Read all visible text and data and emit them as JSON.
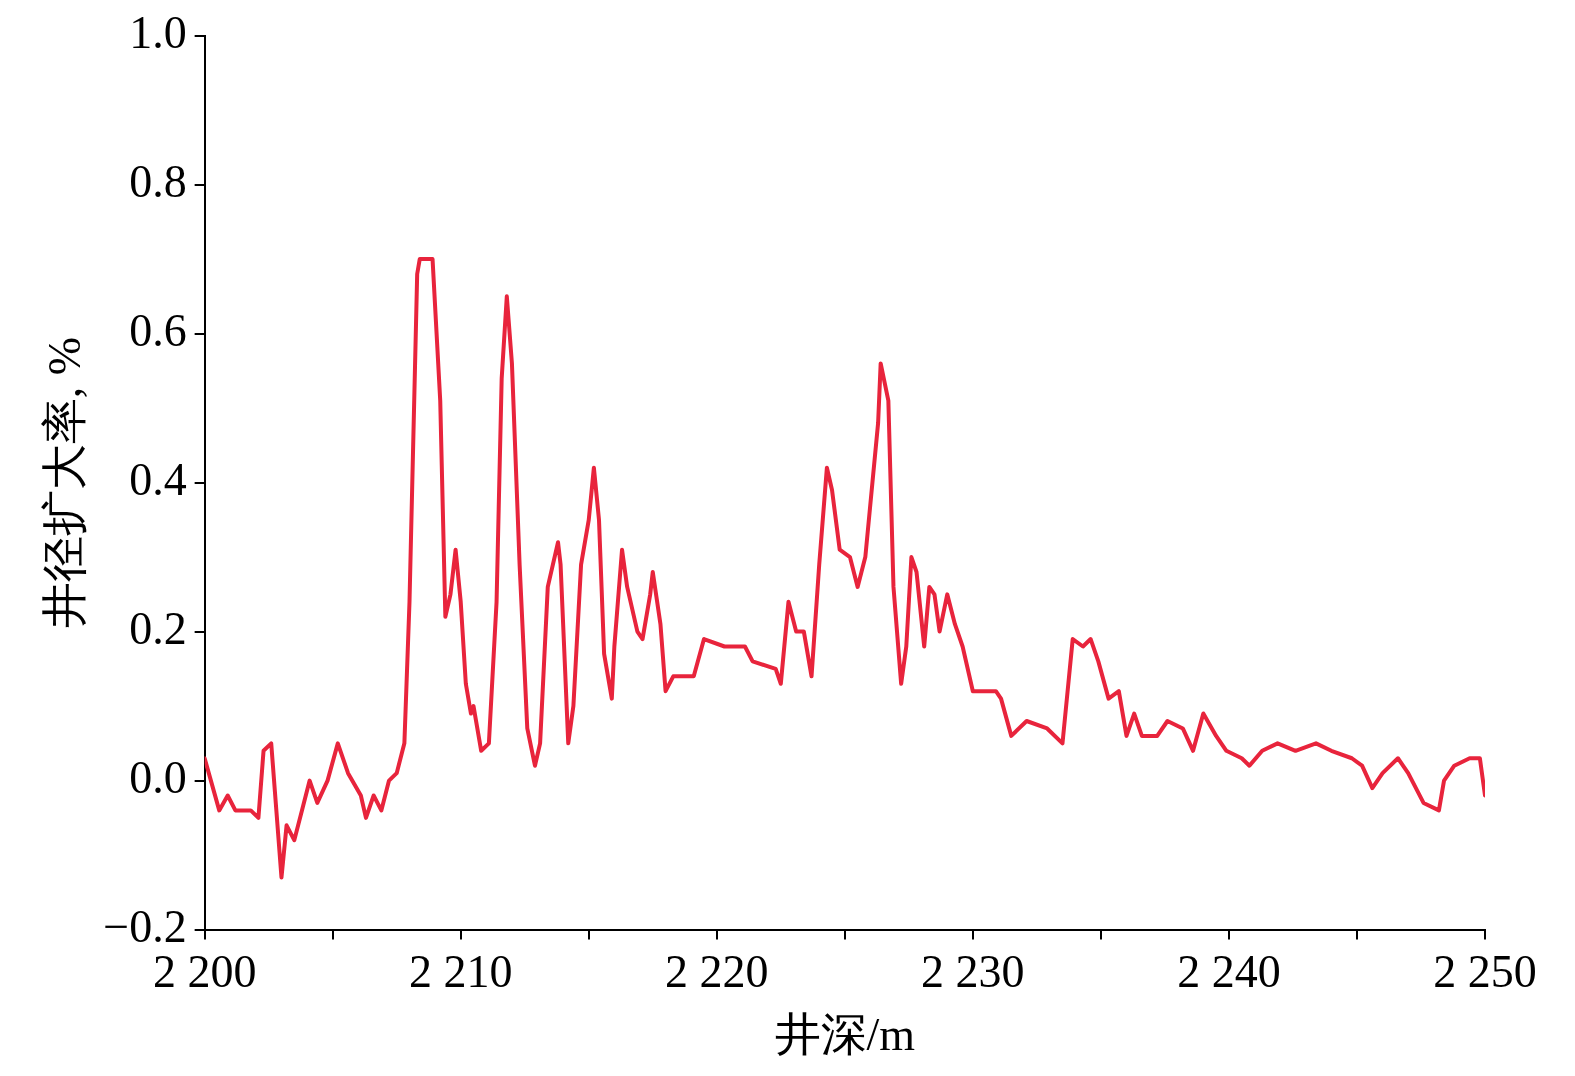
{
  "chart_data": {
    "type": "line",
    "xlabel": "井深/m",
    "ylabel": "井径扩大率, %",
    "x": [
      2200,
      2200.57,
      2200.9,
      2201.2,
      2201.8,
      2202.1,
      2202.3,
      2202.6,
      2202.8,
      2203.0,
      2203.2,
      2203.5,
      2203.8,
      2204.1,
      2204.4,
      2204.8,
      2205.2,
      2205.6,
      2206.1,
      2206.3,
      2206.6,
      2206.9,
      2207.2,
      2207.5,
      2207.8,
      2208.0,
      2208.3,
      2208.4,
      2208.9,
      2209.2,
      2209.4,
      2209.6,
      2209.8,
      2210.0,
      2210.2,
      2210.4,
      2210.5,
      2210.8,
      2211.1,
      2211.4,
      2211.6,
      2211.8,
      2212.0,
      2212.3,
      2212.6,
      2212.9,
      2213.1,
      2213.4,
      2213.8,
      2213.9,
      2214.2,
      2214.4,
      2214.7,
      2215.0,
      2215.2,
      2215.4,
      2215.6,
      2215.9,
      2216.0,
      2216.3,
      2216.5,
      2216.9,
      2217.1,
      2217.4,
      2217.5,
      2217.8,
      2218.0,
      2218.3,
      2219.1,
      2219.5,
      2220.3,
      2221.1,
      2221.4,
      2222.3,
      2222.5,
      2222.8,
      2223.1,
      2223.4,
      2223.7,
      2224.0,
      2224.3,
      2224.5,
      2224.8,
      2225.2,
      2225.5,
      2225.8,
      2226.3,
      2226.4,
      2226.7,
      2226.9,
      2227.2,
      2227.4,
      2227.6,
      2227.8,
      2228.1,
      2228.3,
      2228.5,
      2228.7,
      2229.0,
      2229.3,
      2229.6,
      2230.0,
      2230.5,
      2230.9,
      2231.1,
      2231.5,
      2232.1,
      2232.9,
      2233.5,
      2233.9,
      2234.3,
      2234.6,
      2234.9,
      2235.3,
      2235.7,
      2236.0,
      2236.3,
      2236.6,
      2237.2,
      2237.6,
      2238.2,
      2238.6,
      2239.0,
      2239.5,
      2239.9,
      2240.5,
      2240.8,
      2241.3,
      2241.9,
      2242.6,
      2243.4,
      2244.0,
      2244.8,
      2245.2,
      2245.6,
      2246.0,
      2246.6,
      2247.0,
      2247.6,
      2248.2,
      2248.4,
      2248.8,
      2249.4,
      2249.8,
      2250.0
    ],
    "series": [
      {
        "color": "#e8243c",
        "values": [
          0.03,
          -0.04,
          -0.02,
          -0.04,
          -0.04,
          -0.05,
          0.04,
          0.05,
          -0.04,
          -0.13,
          -0.06,
          -0.08,
          -0.04,
          0.0,
          -0.03,
          0.0,
          0.05,
          0.01,
          -0.02,
          -0.05,
          -0.02,
          -0.04,
          0.0,
          0.01,
          0.05,
          0.24,
          0.68,
          0.7,
          0.7,
          0.51,
          0.22,
          0.25,
          0.31,
          0.24,
          0.13,
          0.09,
          0.1,
          0.04,
          0.05,
          0.24,
          0.54,
          0.65,
          0.56,
          0.29,
          0.07,
          0.02,
          0.05,
          0.26,
          0.32,
          0.29,
          0.05,
          0.1,
          0.29,
          0.35,
          0.42,
          0.35,
          0.17,
          0.11,
          0.18,
          0.31,
          0.26,
          0.2,
          0.19,
          0.25,
          0.28,
          0.21,
          0.12,
          0.14,
          0.14,
          0.19,
          0.18,
          0.18,
          0.16,
          0.15,
          0.13,
          0.24,
          0.2,
          0.2,
          0.14,
          0.29,
          0.42,
          0.39,
          0.31,
          0.3,
          0.26,
          0.3,
          0.48,
          0.56,
          0.51,
          0.26,
          0.13,
          0.18,
          0.3,
          0.28,
          0.18,
          0.26,
          0.25,
          0.2,
          0.25,
          0.21,
          0.18,
          0.12,
          0.12,
          0.12,
          0.11,
          0.06,
          0.08,
          0.07,
          0.05,
          0.19,
          0.18,
          0.19,
          0.16,
          0.11,
          0.12,
          0.06,
          0.09,
          0.06,
          0.06,
          0.08,
          0.07,
          0.04,
          0.09,
          0.06,
          0.04,
          0.03,
          0.02,
          0.04,
          0.05,
          0.04,
          0.05,
          0.04,
          0.03,
          0.02,
          -0.01,
          0.01,
          0.03,
          0.01,
          -0.03,
          -0.04,
          0.0,
          0.02,
          0.03,
          0.03,
          -0.02
        ]
      }
    ],
    "xlim": [
      2200,
      2250
    ],
    "xticks": [
      {
        "value": 2200,
        "label": "2 200"
      },
      {
        "value": 2205,
        "label": null
      },
      {
        "value": 2210,
        "label": "2 210"
      },
      {
        "value": 2215,
        "label": null
      },
      {
        "value": 2220,
        "label": "2 220"
      },
      {
        "value": 2225,
        "label": null
      },
      {
        "value": 2230,
        "label": "2 230"
      },
      {
        "value": 2235,
        "label": null
      },
      {
        "value": 2240,
        "label": "2 240"
      },
      {
        "value": 2245,
        "label": null
      },
      {
        "value": 2250,
        "label": "2 250"
      }
    ],
    "ylim": [
      -0.2,
      1.0
    ],
    "yticks": [
      {
        "value": -0.2,
        "label": "−0.2"
      },
      {
        "value": 0,
        "label": "0.0"
      },
      {
        "value": 0.2,
        "label": "0.2"
      },
      {
        "value": 0.4,
        "label": "0.4"
      },
      {
        "value": 0.6,
        "label": "0.6"
      },
      {
        "value": 0.8,
        "label": "0.8"
      },
      {
        "value": 1.0,
        "label": "1.0"
      }
    ],
    "grid": false,
    "legend": false,
    "marker": "none",
    "line_style": "solid"
  }
}
